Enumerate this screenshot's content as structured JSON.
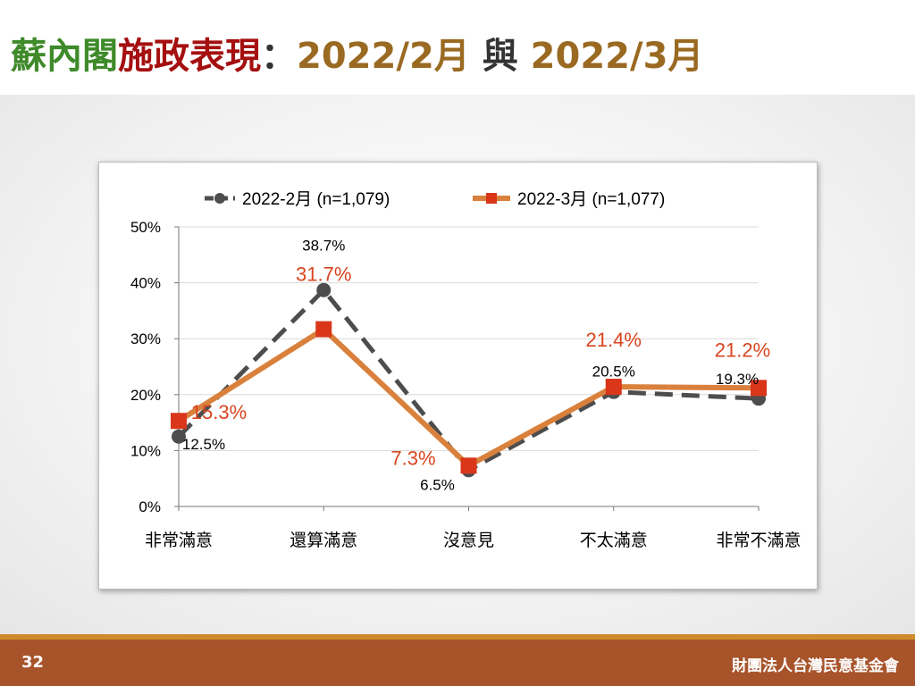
{
  "header": {
    "title_part1": "蘇內閣",
    "title_part2": "施政表現",
    "title_colon": "：",
    "title_part3": "2022/2月",
    "title_part4": "與",
    "title_part5": "2022/3月"
  },
  "footer": {
    "page_number": "32",
    "organization": "財團法人台灣民意基金會"
  },
  "colors": {
    "series1": "#4d4d4d",
    "series2_line": "#d9813c",
    "series2_marker": "#d9361a",
    "series2_label": "#d9451f",
    "footer_bg": "#a8542b"
  },
  "chart_data": {
    "type": "line",
    "categories": [
      "非常滿意",
      "還算滿意",
      "沒意見",
      "不太滿意",
      "非常不滿意"
    ],
    "ylim": [
      0,
      50
    ],
    "yticks": [
      "0%",
      "10%",
      "20%",
      "30%",
      "40%",
      "50%"
    ],
    "grid": true,
    "legend_position": "top",
    "series": [
      {
        "name": "2022-2月  (n=1,079)",
        "values": [
          12.5,
          38.7,
          6.5,
          20.5,
          19.3
        ],
        "labels": [
          "12.5%",
          "38.7%",
          "6.5%",
          "20.5%",
          "19.3%"
        ],
        "style": "dashed",
        "marker": "circle"
      },
      {
        "name": "2022-3月  (n=1,077)",
        "values": [
          15.3,
          31.7,
          7.3,
          21.4,
          21.2
        ],
        "labels": [
          "15.3%",
          "31.7%",
          "7.3%",
          "21.4%",
          "21.2%"
        ],
        "style": "solid",
        "marker": "square"
      }
    ]
  }
}
